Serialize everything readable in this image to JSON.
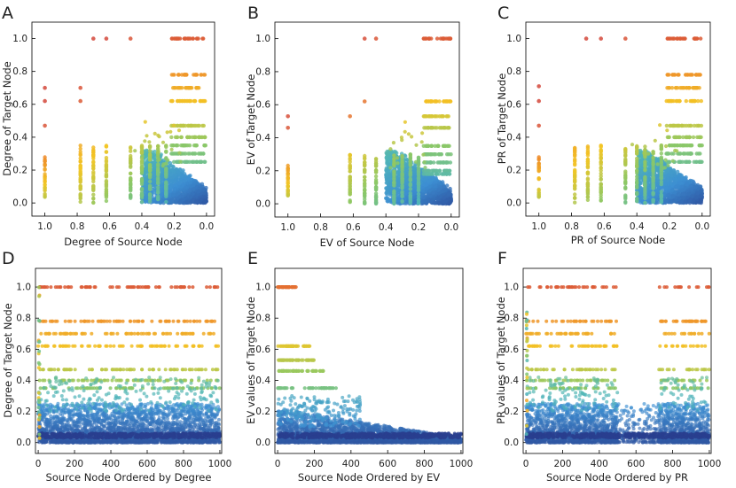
{
  "figure": {
    "colors": {
      "high": "#d4483b",
      "upper": "#ee8a2a",
      "mid_high": "#f2c624",
      "mid": "#8cc866",
      "mid_low": "#4fb5b8",
      "low": "#3d8fd2",
      "dense": "#2a3f8f"
    }
  },
  "chart_data": [
    {
      "panel": "A",
      "type": "scatter",
      "xlabel": "Degree of Source Node",
      "ylabel": "Degree of Target Node",
      "xlim": [
        1.08,
        -0.05
      ],
      "ylim": [
        -0.08,
        1.1
      ],
      "xticks": [
        "1.0",
        "0.8",
        "0.6",
        "0.4",
        "0.2",
        "0.0"
      ],
      "xtick_values": [
        1.0,
        0.8,
        0.6,
        0.4,
        0.2,
        0.0
      ],
      "yticks": [
        "0.0",
        "0.2",
        "0.4",
        "0.6",
        "0.8",
        "1.0"
      ],
      "ytick_values": [
        0.0,
        0.2,
        0.4,
        0.6,
        0.8,
        1.0
      ],
      "pattern": "summary_degree",
      "series_note": "target value vs source value; color from low (blue) to high (red) by target+source",
      "notable_points": [
        [
          1.0,
          0.7
        ],
        [
          1.0,
          0.62
        ],
        [
          1.0,
          0.47
        ],
        [
          0.7,
          1.0
        ],
        [
          0.62,
          1.0
        ],
        [
          0.47,
          1.0
        ],
        [
          0.78,
          0.7
        ],
        [
          0.78,
          0.62
        ]
      ]
    },
    {
      "panel": "B",
      "type": "scatter",
      "xlabel": "EV of Source Node",
      "ylabel": "EV of Target Node",
      "xlim": [
        1.08,
        -0.05
      ],
      "ylim": [
        -0.08,
        1.1
      ],
      "xticks": [
        "1.0",
        "0.8",
        "0.6",
        "0.4",
        "0.2",
        "0.0"
      ],
      "xtick_values": [
        1.0,
        0.8,
        0.6,
        0.4,
        0.2,
        0.0
      ],
      "yticks": [
        "0.0",
        "0.2",
        "0.4",
        "0.6",
        "0.8",
        "1.0"
      ],
      "ytick_values": [
        0.0,
        0.2,
        0.4,
        0.6,
        0.8,
        1.0
      ],
      "pattern": "summary_ev",
      "notable_points": [
        [
          1.0,
          0.53
        ],
        [
          1.0,
          0.46
        ],
        [
          0.53,
          1.0
        ],
        [
          0.46,
          1.0
        ],
        [
          0.62,
          0.53
        ],
        [
          0.53,
          0.62
        ]
      ]
    },
    {
      "panel": "C",
      "type": "scatter",
      "xlabel": "PR of Source Node",
      "ylabel": "PR of Target Node",
      "xlim": [
        1.08,
        -0.05
      ],
      "ylim": [
        -0.08,
        1.1
      ],
      "xticks": [
        "1.0",
        "0.8",
        "0.6",
        "0.4",
        "0.2",
        "0.0"
      ],
      "xtick_values": [
        1.0,
        0.8,
        0.6,
        0.4,
        0.2,
        0.0
      ],
      "yticks": [
        "0.0",
        "0.2",
        "0.4",
        "0.6",
        "0.8",
        "1.0"
      ],
      "ytick_values": [
        0.0,
        0.2,
        0.4,
        0.6,
        0.8,
        1.0
      ],
      "pattern": "summary_degree",
      "notable_points": [
        [
          1.0,
          0.71
        ],
        [
          1.0,
          0.62
        ],
        [
          1.0,
          0.47
        ],
        [
          0.71,
          1.0
        ],
        [
          0.62,
          1.0
        ],
        [
          0.47,
          1.0
        ]
      ]
    },
    {
      "panel": "D",
      "type": "scatter",
      "xlabel": "Source Node Ordered by Degree",
      "ylabel": "Degree of Target Node",
      "xlim": [
        -15,
        1010
      ],
      "ylim": [
        -0.07,
        1.12
      ],
      "xticks": [
        "0",
        "200",
        "400",
        "600",
        "800",
        "1000"
      ],
      "xtick_values": [
        0,
        200,
        400,
        600,
        800,
        1000
      ],
      "yticks": [
        "0.0",
        "0.2",
        "0.4",
        "0.6",
        "0.8",
        "1.0"
      ],
      "ytick_values": [
        0.0,
        0.2,
        0.4,
        0.6,
        0.8,
        1.0
      ],
      "pattern": "ordered_degree",
      "bands": [
        1.0,
        0.78,
        0.7,
        0.62,
        0.47,
        0.4,
        0.35
      ],
      "dense_region": {
        "x_range": [
          0,
          1000
        ],
        "y_range": [
          0.0,
          0.25
        ]
      }
    },
    {
      "panel": "E",
      "type": "scatter",
      "xlabel": "Source Node Ordered by EV",
      "ylabel": "EV values of Target Node",
      "xlim": [
        -15,
        1010
      ],
      "ylim": [
        -0.07,
        1.12
      ],
      "xticks": [
        "0",
        "200",
        "400",
        "600",
        "800",
        "1000"
      ],
      "xtick_values": [
        0,
        200,
        400,
        600,
        800,
        1000
      ],
      "yticks": [
        "0.0",
        "0.2",
        "0.4",
        "0.6",
        "0.8",
        "1.0"
      ],
      "ytick_values": [
        0.0,
        0.2,
        0.4,
        0.6,
        0.8,
        1.0
      ],
      "pattern": "ordered_ev",
      "bands": [
        [
          1.0,
          0,
          100
        ],
        [
          0.62,
          0,
          175
        ],
        [
          0.53,
          0,
          210
        ],
        [
          0.46,
          0,
          250
        ],
        [
          0.35,
          0,
          320
        ]
      ],
      "dense_region": {
        "x_range": [
          0,
          1000
        ],
        "y_range": [
          0.0,
          0.2
        ],
        "tapers_to": 0.0
      }
    },
    {
      "panel": "F",
      "type": "scatter",
      "xlabel": "Source Node Ordered by PR",
      "ylabel": "PR values of Target Node",
      "xlim": [
        -15,
        1010
      ],
      "ylim": [
        -0.07,
        1.12
      ],
      "xticks": [
        "0",
        "200",
        "400",
        "600",
        "800",
        "1000"
      ],
      "xtick_values": [
        0,
        200,
        400,
        600,
        800,
        1000
      ],
      "yticks": [
        "0.0",
        "0.2",
        "0.4",
        "0.6",
        "0.8",
        "1.0"
      ],
      "ytick_values": [
        0.0,
        0.2,
        0.4,
        0.6,
        0.8,
        1.0
      ],
      "pattern": "ordered_pr",
      "bands": [
        1.0,
        0.78,
        0.7,
        0.62,
        0.47,
        0.4,
        0.35
      ],
      "gap_range": [
        500,
        720
      ],
      "dense_region": {
        "x_range": [
          0,
          1000
        ],
        "y_range": [
          0.0,
          0.25
        ]
      }
    }
  ]
}
